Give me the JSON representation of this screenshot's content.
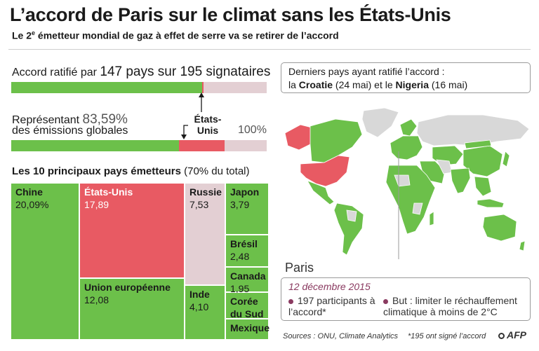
{
  "header": {
    "title": "L’accord de Paris sur le climat sans les États-Unis",
    "subtitle_pre": "Le 2",
    "subtitle_sup": "e",
    "subtitle_post": " émetteur mondial de gaz à effet de serre va se retirer de l’accord"
  },
  "ratification": {
    "prefix": "Accord ratifié par ",
    "big": "147 pays sur 195 signataires",
    "ratified": 147,
    "signatories": 195,
    "colors": {
      "ratified": "#6cc04a",
      "us": "#e85a63",
      "remaining": "#e3cfd3"
    }
  },
  "emissions": {
    "line1_prefix": "Représentant ",
    "line1_big": "83,59%",
    "line2": "des émissions globales",
    "share_represented": 83.59,
    "us_share": 17.89,
    "us_label": "États-Unis",
    "total_label": "100%"
  },
  "top10": {
    "title": "Les 10 principaux pays émetteurs",
    "title_note": " (70% du total)"
  },
  "chart_data": {
    "type": "treemap",
    "unit": "%",
    "items": [
      {
        "name": "Chine",
        "value": 20.09,
        "label": "20,09%",
        "color": "#6cc04a"
      },
      {
        "name": "États-Unis",
        "value": 17.89,
        "label": "17,89",
        "color": "#e85a63"
      },
      {
        "name": "Union européenne",
        "value": 12.08,
        "label": "12,08",
        "color": "#6cc04a"
      },
      {
        "name": "Russie",
        "value": 7.53,
        "label": "7,53",
        "color": "#e3cfd3"
      },
      {
        "name": "Inde",
        "value": 4.1,
        "label": "4,10",
        "color": "#6cc04a"
      },
      {
        "name": "Japon",
        "value": 3.79,
        "label": "3,79",
        "color": "#6cc04a"
      },
      {
        "name": "Brésil",
        "value": 2.48,
        "label": "2,48",
        "color": "#6cc04a"
      },
      {
        "name": "Canada",
        "value": 1.95,
        "label": "1,95",
        "color": "#6cc04a"
      },
      {
        "name": "Corée du Sud",
        "value": null,
        "label": "",
        "color": "#6cc04a"
      },
      {
        "name": "Mexique",
        "value": null,
        "label": "",
        "color": "#6cc04a"
      }
    ]
  },
  "latest": {
    "line1": "Derniers pays ayant ratifié l’accord :",
    "pre": "la ",
    "country1": "Croatie",
    "date1": " (24 mai)  et le ",
    "country2": "Nigeria",
    "date2": " (16 mai)"
  },
  "map": {
    "colors": {
      "ratified": "#6cc04a",
      "usa": "#e85a63",
      "other": "#d8d8d8"
    }
  },
  "paris": {
    "title": "Paris",
    "date": "12 décembre 2015",
    "point1": "197 participants à l’accord*",
    "point2": "But : limiter le réchauffement climatique à moins de 2°C"
  },
  "footer": {
    "sources": "Sources : ONU, Climate Analytics",
    "footnote": "*195 ont signé l’accord",
    "logo": "AFP"
  }
}
